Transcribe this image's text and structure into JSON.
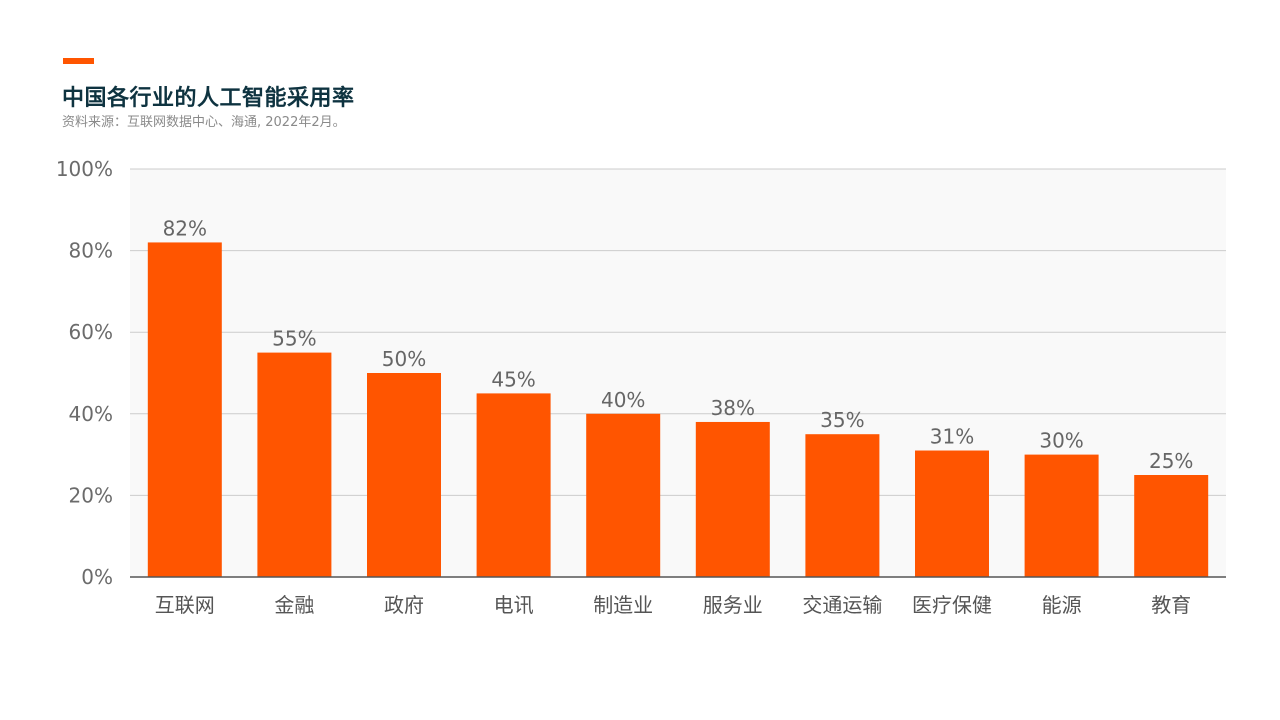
{
  "header": {
    "title": "中国各行业的人工智能采用率",
    "source": "资料来源：互联网数据中心、海通, 2022年2月。"
  },
  "colors": {
    "accent": "#ff5500",
    "bar": "#ff5500",
    "title": "#0e3340",
    "plot_background": "#f9f9f9",
    "grid": "#cccccc"
  },
  "chart_data": {
    "type": "bar",
    "categories": [
      "互联网",
      "金融",
      "政府",
      "电讯",
      "制造业",
      "服务业",
      "交通运输",
      "医疗保健",
      "能源",
      "教育"
    ],
    "values": [
      82,
      55,
      50,
      45,
      40,
      38,
      35,
      31,
      30,
      25
    ],
    "data_labels": [
      "82%",
      "55%",
      "50%",
      "45%",
      "40%",
      "38%",
      "35%",
      "31%",
      "30%",
      "25%"
    ],
    "title": "中国各行业的人工智能采用率",
    "xlabel": "",
    "ylabel": "",
    "ylim": [
      0,
      100
    ],
    "yticks": [
      0,
      20,
      40,
      60,
      80,
      100
    ],
    "ytick_labels": [
      "0%",
      "20%",
      "40%",
      "60%",
      "80%",
      "100%"
    ],
    "grid": true,
    "legend": "none"
  }
}
